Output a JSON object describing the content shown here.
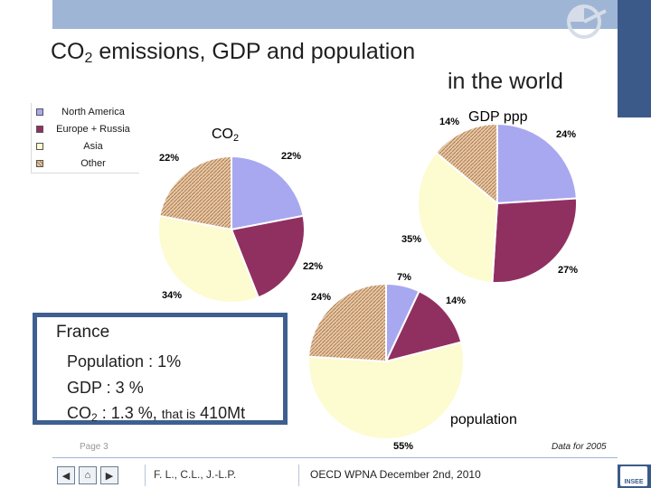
{
  "title": {
    "main": "CO",
    "sub": "2",
    "rest": " emissions,  GDP and population",
    "line2": "in the world"
  },
  "legend": {
    "items": [
      {
        "label": "North America",
        "color": "#a8a8f0"
      },
      {
        "label": "Europe + Russia",
        "color": "#903060"
      },
      {
        "label": "Asia",
        "color": "#fdfbd0"
      },
      {
        "label": "Other",
        "color": "#d9a87c"
      }
    ]
  },
  "chart_data": [
    {
      "type": "pie",
      "title": "CO2",
      "categories": [
        "North America",
        "Europe + Russia",
        "Asia",
        "Other"
      ],
      "values": [
        22,
        22,
        34,
        22
      ],
      "data_labels": [
        "22%",
        "22%",
        "34%",
        "22%"
      ],
      "colors": [
        "#a8a8f0",
        "#903060",
        "#fdfbd0",
        "#d9a87c"
      ]
    },
    {
      "type": "pie",
      "title": "GDP ppp",
      "categories": [
        "North America",
        "Europe + Russia",
        "Asia",
        "Other"
      ],
      "values": [
        24,
        27,
        35,
        14
      ],
      "data_labels": [
        "24%",
        "27%",
        "35%",
        "14%"
      ],
      "colors": [
        "#a8a8f0",
        "#903060",
        "#fdfbd0",
        "#d9a87c"
      ]
    },
    {
      "type": "pie",
      "title": "population",
      "categories": [
        "North America",
        "Europe + Russia",
        "Asia",
        "Other"
      ],
      "values": [
        7,
        14,
        55,
        24
      ],
      "data_labels": [
        "7%",
        "14%",
        "55%",
        "24%"
      ],
      "colors": [
        "#a8a8f0",
        "#903060",
        "#fdfbd0",
        "#d9a87c"
      ]
    }
  ],
  "chart_labels": {
    "co2_main": "CO",
    "co2_sub": "2",
    "gdp": "GDP ppp",
    "population": "population"
  },
  "france": {
    "title": "France",
    "population": "Population : 1%",
    "gdp": "GDP : 3 %",
    "co2_main": "CO",
    "co2_sub": "2",
    "co2_rest": " : 1.3 %, ",
    "co2_small": "that is",
    "co2_value": " 410Mt"
  },
  "footer": {
    "page": "Page 3",
    "data_note": "Data for 2005",
    "authors": "F. L., C.L., J.-L.P.",
    "event": "OECD WPNA December 2nd, 2010",
    "org": "INSEE",
    "nav_prev": "◀",
    "nav_next": "▶",
    "nav_home": "⌂"
  }
}
